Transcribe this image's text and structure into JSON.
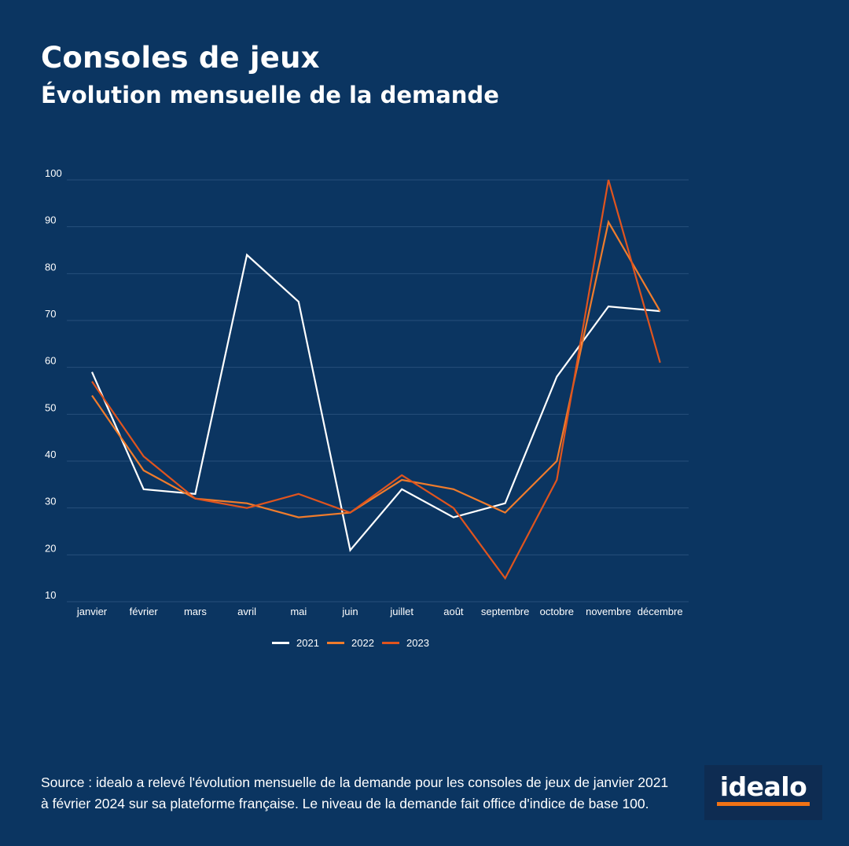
{
  "header": {
    "title": "Consoles de jeux",
    "subtitle": "Évolution mensuelle de la demande"
  },
  "chart_data": {
    "type": "line",
    "categories": [
      "janvier",
      "février",
      "mars",
      "avril",
      "mai",
      "juin",
      "juillet",
      "août",
      "septembre",
      "octobre",
      "novembre",
      "décembre"
    ],
    "yticks": [
      10,
      20,
      30,
      40,
      50,
      60,
      70,
      80,
      90,
      100
    ],
    "ylim": [
      10,
      100
    ],
    "grid": true,
    "legend_position": "bottom-center",
    "series": [
      {
        "name": "2021",
        "color": "#ffffff",
        "values": [
          59,
          34,
          33,
          84,
          74,
          21,
          34,
          28,
          31,
          58,
          73,
          72
        ]
      },
      {
        "name": "2022",
        "color": "#f07c2c",
        "values": [
          54,
          38,
          32,
          31,
          28,
          29,
          36,
          34,
          29,
          40,
          91,
          72
        ]
      },
      {
        "name": "2023",
        "color": "#e0541e",
        "values": [
          57,
          41,
          32,
          30,
          33,
          29,
          37,
          30,
          15,
          36,
          100,
          61
        ]
      }
    ]
  },
  "footer": {
    "source_line1": "Source : idealo a relevé l'évolution mensuelle de la demande pour les consoles de jeux de janvier 2021",
    "source_line2": "à février 2024 sur sa plateforme française. Le niveau de la demande fait office d'indice de base 100."
  },
  "logo": {
    "text": "idealo",
    "accent_color": "#f27315"
  }
}
